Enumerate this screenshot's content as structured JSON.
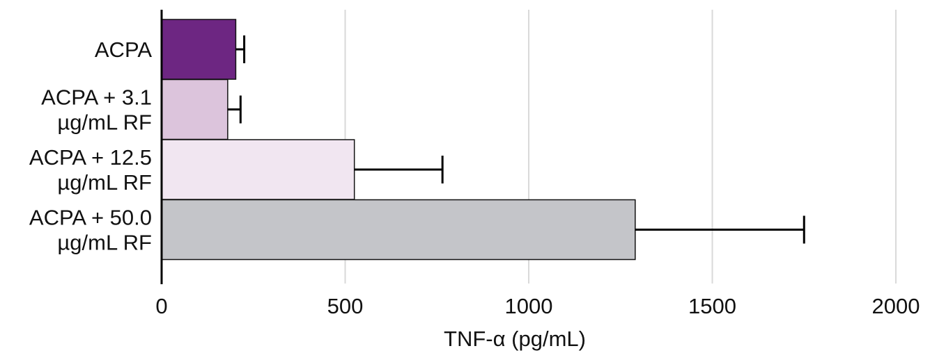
{
  "chart_data": {
    "type": "bar",
    "orientation": "horizontal",
    "categories": [
      [
        "ACPA"
      ],
      [
        "ACPA + 3.1",
        "µg/mL RF"
      ],
      [
        "ACPA + 12.5",
        "µg/mL RF"
      ],
      [
        "ACPA + 50.0",
        "µg/mL RF"
      ]
    ],
    "values": [
      202,
      180,
      525,
      1290
    ],
    "errors": [
      23,
      35,
      240,
      460
    ],
    "colors": [
      "#6d2682",
      "#dcc4dc",
      "#f1e6f1",
      "#c4c5c9"
    ],
    "xlabel": "TNF-α (pg/mL)",
    "xlim": [
      0,
      2000
    ],
    "xticks": [
      0,
      500,
      1000,
      1500,
      2000
    ],
    "grid": "vertical",
    "legend": "none"
  }
}
